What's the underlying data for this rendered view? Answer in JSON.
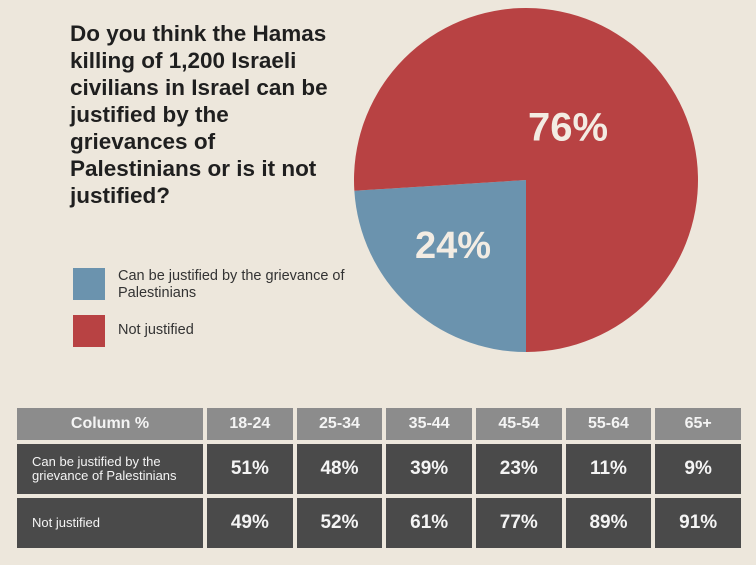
{
  "question": "Do you think the Hamas killing of 1,200 Israeli civilians in Israel can be justified by the grievances of Palestinians or is it not justified?",
  "colors": {
    "background": "#ede7dc",
    "justified": "#6b93ae",
    "not_justified": "#b84243",
    "table_header": "#8c8c8c",
    "table_cell": "#4a4a4a"
  },
  "legend": [
    {
      "label": "Can be justified by the grievance of Palestinians",
      "color": "#6b93ae"
    },
    {
      "label": "Not justified",
      "color": "#b84243"
    }
  ],
  "chart_data": [
    {
      "type": "pie",
      "title": "Do you think the Hamas killing of 1,200 Israeli civilians in Israel can be justified by the grievances of Palestinians or is it not justified?",
      "categories": [
        "Can be justified by the grievance of Palestinians",
        "Not justified"
      ],
      "values": [
        24,
        76
      ],
      "labels": [
        "24%",
        "76%"
      ],
      "colors": [
        "#6b93ae",
        "#b84243"
      ],
      "legend_position": "left"
    },
    {
      "type": "table",
      "columns": [
        "Column %",
        "18-24",
        "25-34",
        "35-44",
        "45-54",
        "55-64",
        "65+"
      ],
      "rows": [
        {
          "label": "Can be justified by the grievance of Palestinians",
          "values": [
            "51%",
            "48%",
            "39%",
            "23%",
            "11%",
            "9%"
          ]
        },
        {
          "label": "Not justified",
          "values": [
            "49%",
            "52%",
            "61%",
            "77%",
            "89%",
            "91%"
          ]
        }
      ]
    }
  ]
}
